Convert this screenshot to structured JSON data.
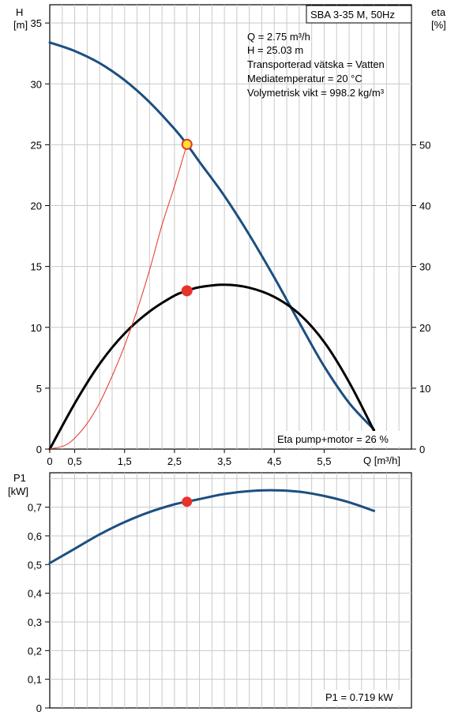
{
  "chart_data": [
    {
      "type": "line",
      "title": "SBA 3-35 M, 50Hz",
      "y_axis_left_label": [
        "H",
        "[m]"
      ],
      "y_axis_right_label": [
        "eta",
        "[%]"
      ],
      "xlabel": "Q [m³/h]",
      "xlim": [
        0,
        7.25
      ],
      "ylim": [
        0,
        36.5
      ],
      "y2lim": [
        0,
        73
      ],
      "x_ticks": [
        "0",
        "0,5",
        "1,5",
        "2,5",
        "3,5",
        "4,5",
        "5,5"
      ],
      "x_tick_values": [
        0,
        0.5,
        1.5,
        2.5,
        3.5,
        4.5,
        5.5
      ],
      "y_ticks": [
        "0",
        "5",
        "10",
        "15",
        "20",
        "25",
        "30",
        "35"
      ],
      "y2_ticks": [
        "0",
        "10",
        "20",
        "30",
        "40",
        "50"
      ],
      "info_lines": [
        "Q = 2.75 m³/h",
        "H = 25.03 m",
        "Transporterad vätska = Vatten",
        "Mediatemperatur = 20 °C",
        "Volymetrisk vikt = 998.2 kg/m³"
      ],
      "eta_note": "Eta pump+motor = 26 %",
      "series": [
        {
          "key": "head",
          "color": "#1c4f80",
          "x": [
            0,
            0.5,
            1,
            1.5,
            2,
            2.5,
            2.75,
            3,
            3.5,
            4,
            4.5,
            5,
            5.5,
            6,
            6.5
          ],
          "y": [
            33.4,
            32.7,
            31.7,
            30.3,
            28.5,
            26.3,
            25.03,
            23.6,
            20.8,
            17.6,
            14.1,
            10.4,
            6.8,
            3.8,
            1.6
          ]
        },
        {
          "key": "eta",
          "color": "#000000",
          "axis": "right",
          "x": [
            0,
            0.5,
            1,
            1.5,
            2,
            2.5,
            2.75,
            3,
            3.5,
            4,
            4.5,
            5,
            5.5,
            6,
            6.5
          ],
          "y": [
            0,
            7.5,
            14.0,
            19.0,
            22.6,
            25.2,
            26.0,
            26.6,
            27.0,
            26.5,
            25.0,
            22.2,
            17.6,
            11.0,
            3.0
          ]
        },
        {
          "key": "system",
          "color": "#e8322c",
          "x": [
            0,
            0.3,
            0.5,
            0.75,
            1,
            1.25,
            1.5,
            1.75,
            2,
            2.25,
            2.5,
            2.75
          ],
          "y": [
            0,
            0.3,
            0.9,
            2.1,
            3.8,
            6.0,
            8.5,
            11.4,
            14.7,
            18.4,
            21.6,
            25.03
          ]
        }
      ],
      "operating_points": [
        {
          "key": "head-duty-point",
          "x": 2.75,
          "y": 25.03,
          "fill": "#ffe233",
          "stroke": "#e8322c"
        },
        {
          "key": "eta-duty-point",
          "x": 2.75,
          "y": 13.0,
          "fill": "#e8322c",
          "stroke": "#e8322c"
        }
      ]
    },
    {
      "type": "line",
      "y_axis_left_label": [
        "P1",
        "[kW]"
      ],
      "xlim": [
        0,
        7.25
      ],
      "ylim": [
        0,
        0.82
      ],
      "y_ticks": [
        "0",
        "0,1",
        "0,2",
        "0,3",
        "0,4",
        "0,5",
        "0,6",
        "0,7"
      ],
      "y_tick_values": [
        0,
        0.1,
        0.2,
        0.3,
        0.4,
        0.5,
        0.6,
        0.7
      ],
      "p1_note": "P1 = 0.719 kW",
      "series": [
        {
          "key": "power",
          "color": "#1c4f80",
          "x": [
            0,
            0.5,
            1,
            1.5,
            2,
            2.5,
            2.75,
            3,
            3.5,
            4,
            4.5,
            5,
            5.5,
            6,
            6.5
          ],
          "y": [
            0.505,
            0.555,
            0.605,
            0.648,
            0.683,
            0.71,
            0.719,
            0.728,
            0.746,
            0.756,
            0.759,
            0.754,
            0.739,
            0.717,
            0.687
          ]
        }
      ],
      "operating_points": [
        {
          "key": "power-duty-point",
          "x": 2.75,
          "y": 0.719,
          "fill": "#e8322c",
          "stroke": "#e8322c"
        }
      ]
    }
  ]
}
